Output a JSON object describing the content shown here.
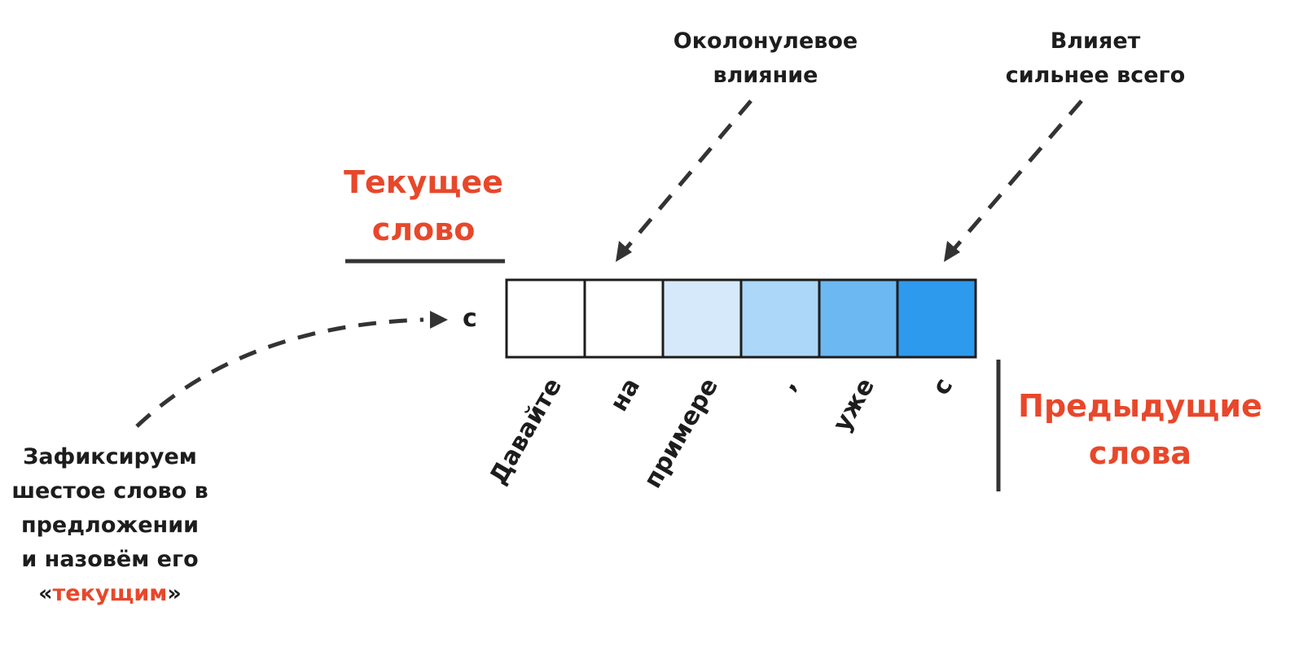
{
  "annotations": {
    "near_zero": "Околонулевое\nвлияние",
    "strongest": "Влияет\nсильнее всего",
    "current_word_title": "Текущее\nслово",
    "previous_words_title": "Предыдущие\nслова",
    "fix_note_lines": [
      "Зафиксируем",
      "шестое слово в",
      "предложении",
      "и назовём его"
    ],
    "fix_note_quote_open": "«",
    "fix_note_highlight": "текущим",
    "fix_note_quote_close": "»"
  },
  "current_word": "с",
  "cells": [
    {
      "word": "Давайте",
      "color": "#ffffff"
    },
    {
      "word": "на",
      "color": "#ffffff"
    },
    {
      "word": "примере",
      "color": "#d6e9fa"
    },
    {
      "word": ",",
      "color": "#acd7f8"
    },
    {
      "word": "уже",
      "color": "#6cb8f2"
    },
    {
      "word": "с",
      "color": "#2e9aee"
    }
  ],
  "colors": {
    "accent": "#e8472a",
    "ink": "#1d1d1d"
  }
}
